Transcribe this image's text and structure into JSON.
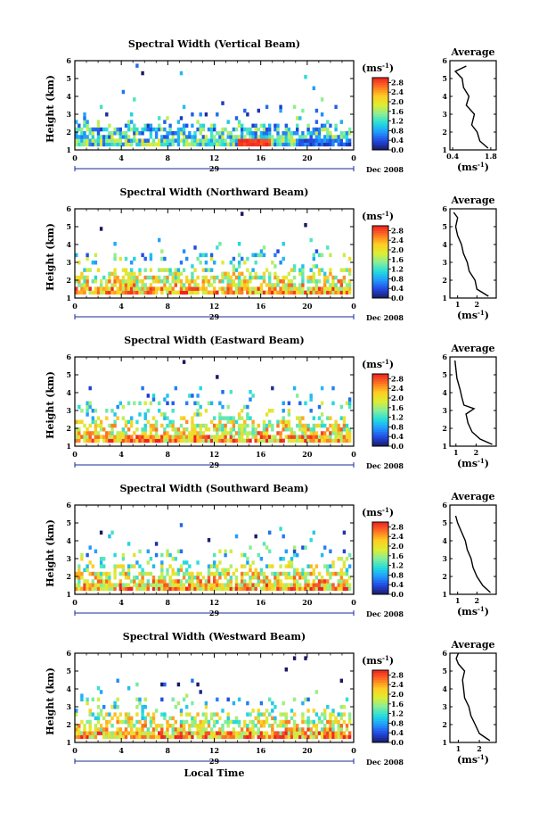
{
  "chart_data": [
    {
      "type": "heatmap",
      "title": "Spectral Width (Vertical Beam)",
      "ylabel": "Height (km)",
      "xlabel": "",
      "ylim": [
        1,
        6
      ],
      "y_ticks": [
        "1",
        "2",
        "3",
        "4",
        "5",
        "6"
      ],
      "xlim": [
        0,
        24
      ],
      "x_ticks": [
        "0",
        "4",
        "8",
        "12",
        "16",
        "20",
        "0"
      ],
      "date_day": "29",
      "date_month": "Dec 2008",
      "colorbar_unit": "(ms-1)",
      "colorbar_ticks": [
        "0.0",
        "0.4",
        "0.8",
        "1.2",
        "1.6",
        "2.0",
        "2.4",
        "2.8"
      ],
      "colorbar_range": [
        0,
        3.0
      ],
      "profile_title": "Average",
      "profile_xlabel": "(ms-1)",
      "profile_xticks": [
        "0.4",
        "1.8"
      ],
      "profile_xlim": [
        0.3,
        2.0
      ],
      "profile_yticks": [
        "1",
        "2",
        "3",
        "4",
        "5",
        "6"
      ],
      "profile": [
        [
          1.1,
          1.7
        ],
        [
          1.5,
          1.4
        ],
        [
          2.0,
          1.3
        ],
        [
          2.4,
          1.1
        ],
        [
          3.0,
          1.2
        ],
        [
          3.5,
          0.9
        ],
        [
          4.0,
          1.0
        ],
        [
          4.5,
          0.8
        ],
        [
          5.0,
          0.75
        ],
        [
          5.4,
          0.5
        ],
        [
          5.7,
          0.9
        ]
      ]
    },
    {
      "type": "heatmap",
      "title": "Spectral Width (Northward Beam)",
      "ylabel": "Height (km)",
      "xlabel": "",
      "ylim": [
        1,
        6
      ],
      "y_ticks": [
        "1",
        "2",
        "3",
        "4",
        "5",
        "6"
      ],
      "xlim": [
        0,
        24
      ],
      "x_ticks": [
        "0",
        "4",
        "8",
        "12",
        "16",
        "20",
        "0"
      ],
      "date_day": "29",
      "date_month": "Dec 2008",
      "colorbar_unit": "(ms-1)",
      "colorbar_ticks": [
        "0.0",
        "0.4",
        "0.8",
        "1.2",
        "1.6",
        "2.0",
        "2.4",
        "2.8"
      ],
      "colorbar_range": [
        0,
        3.0
      ],
      "profile_title": "Average",
      "profile_xlabel": "(ms-1)",
      "profile_xticks": [
        "1",
        "2"
      ],
      "profile_xlim": [
        0.6,
        3.0
      ],
      "profile_yticks": [
        "1",
        "2",
        "3",
        "4",
        "5",
        "6"
      ],
      "profile": [
        [
          1.1,
          2.6
        ],
        [
          1.5,
          2.0
        ],
        [
          2.0,
          1.9
        ],
        [
          2.5,
          1.6
        ],
        [
          3.0,
          1.5
        ],
        [
          3.5,
          1.3
        ],
        [
          4.0,
          1.2
        ],
        [
          4.5,
          1.0
        ],
        [
          5.0,
          0.9
        ],
        [
          5.5,
          1.0
        ],
        [
          5.8,
          0.8
        ]
      ]
    },
    {
      "type": "heatmap",
      "title": "Spectral Width (Eastward Beam)",
      "ylabel": "Height (km)",
      "xlabel": "",
      "ylim": [
        1,
        6
      ],
      "y_ticks": [
        "1",
        "2",
        "3",
        "4",
        "5",
        "6"
      ],
      "xlim": [
        0,
        24
      ],
      "x_ticks": [
        "0",
        "4",
        "8",
        "12",
        "16",
        "20",
        "0"
      ],
      "date_day": "29",
      "date_month": "Dec 2008",
      "colorbar_unit": "(ms-1)",
      "colorbar_ticks": [
        "0.0",
        "0.4",
        "0.8",
        "1.2",
        "1.6",
        "2.0",
        "2.4",
        "2.8"
      ],
      "colorbar_range": [
        0,
        3.0
      ],
      "profile_title": "Average",
      "profile_xlabel": "(ms-1)",
      "profile_xticks": [
        "1",
        "2"
      ],
      "profile_xlim": [
        0.7,
        3.0
      ],
      "profile_yticks": [
        "1",
        "2",
        "3",
        "4",
        "5",
        "6"
      ],
      "profile": [
        [
          1.1,
          2.8
        ],
        [
          1.4,
          2.2
        ],
        [
          1.8,
          1.8
        ],
        [
          2.3,
          1.6
        ],
        [
          2.8,
          1.5
        ],
        [
          3.1,
          1.9
        ],
        [
          3.3,
          1.4
        ],
        [
          3.7,
          1.3
        ],
        [
          4.2,
          1.2
        ],
        [
          4.8,
          1.05
        ],
        [
          5.3,
          1.0
        ],
        [
          5.8,
          0.95
        ]
      ]
    },
    {
      "type": "heatmap",
      "title": "Spectral Width (Southward Beam)",
      "ylabel": "Height (km)",
      "xlabel": "",
      "ylim": [
        1,
        6
      ],
      "y_ticks": [
        "1",
        "2",
        "3",
        "4",
        "5",
        "6"
      ],
      "xlim": [
        0,
        24
      ],
      "x_ticks": [
        "0",
        "4",
        "8",
        "12",
        "16",
        "20",
        "0"
      ],
      "date_day": "29",
      "date_month": "Dec 2008",
      "colorbar_unit": "(ms-1)",
      "colorbar_ticks": [
        "0.0",
        "0.4",
        "0.8",
        "1.2",
        "1.6",
        "2.0",
        "2.4",
        "2.8"
      ],
      "colorbar_range": [
        0,
        3.0
      ],
      "profile_title": "Average",
      "profile_xlabel": "(ms-1)",
      "profile_xticks": [
        "1",
        "2"
      ],
      "profile_xlim": [
        0.6,
        3.0
      ],
      "profile_yticks": [
        "1",
        "2",
        "3",
        "4",
        "5",
        "6"
      ],
      "profile": [
        [
          1.1,
          2.7
        ],
        [
          1.5,
          2.3
        ],
        [
          2.0,
          2.0
        ],
        [
          2.5,
          1.8
        ],
        [
          3.0,
          1.7
        ],
        [
          3.5,
          1.5
        ],
        [
          4.0,
          1.4
        ],
        [
          4.5,
          1.2
        ],
        [
          5.0,
          1.0
        ],
        [
          5.4,
          0.9
        ]
      ]
    },
    {
      "type": "heatmap",
      "title": "Spectral Width (Westward Beam)",
      "ylabel": "Height (km)",
      "xlabel": "Local Time",
      "ylim": [
        1,
        6
      ],
      "y_ticks": [
        "1",
        "2",
        "3",
        "4",
        "5",
        "6"
      ],
      "xlim": [
        0,
        24
      ],
      "x_ticks": [
        "0",
        "4",
        "8",
        "12",
        "16",
        "20",
        "0"
      ],
      "date_day": "29",
      "date_month": "Dec 2008",
      "colorbar_unit": "(ms-1)",
      "colorbar_ticks": [
        "0.0",
        "0.4",
        "0.8",
        "1.2",
        "1.6",
        "2.0",
        "2.4",
        "2.8"
      ],
      "colorbar_range": [
        0,
        3.0
      ],
      "profile_title": "Average",
      "profile_xlabel": "(ms-1)",
      "profile_xticks": [
        "1",
        "2"
      ],
      "profile_xlim": [
        0.6,
        2.8
      ],
      "profile_yticks": [
        "1",
        "2",
        "3",
        "4",
        "5",
        "6"
      ],
      "profile": [
        [
          1.1,
          2.5
        ],
        [
          1.5,
          2.0
        ],
        [
          2.0,
          1.8
        ],
        [
          2.5,
          1.6
        ],
        [
          3.0,
          1.5
        ],
        [
          3.5,
          1.3
        ],
        [
          4.0,
          1.25
        ],
        [
          4.5,
          1.2
        ],
        [
          5.0,
          1.3
        ],
        [
          5.4,
          1.0
        ],
        [
          5.7,
          0.9
        ],
        [
          6.0,
          1.0
        ]
      ]
    }
  ]
}
